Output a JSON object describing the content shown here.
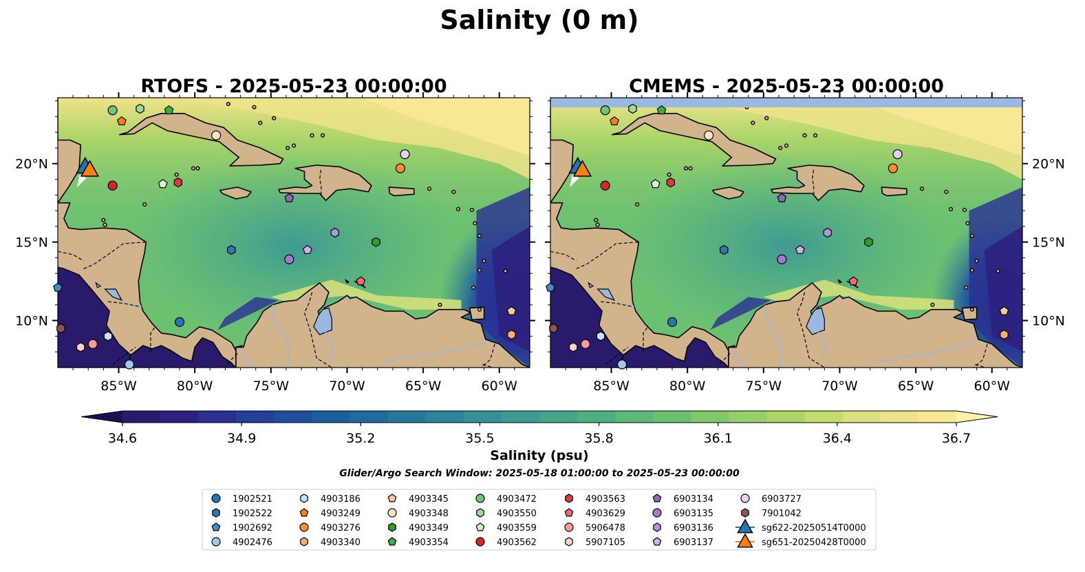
{
  "suptitle": "Salinity (0 m)",
  "panels": [
    {
      "title": "RTOFS - 2025-05-23 00:00:00"
    },
    {
      "title": "CMEMS - 2025-05-23 00:00:00"
    }
  ],
  "axes": {
    "lon_ticks": [
      "85°W",
      "80°W",
      "75°W",
      "70°W",
      "65°W",
      "60°W"
    ],
    "lat_ticks": [
      "20°N",
      "15°N",
      "10°N"
    ]
  },
  "colorbar": {
    "ticks": [
      "34.6",
      "34.9",
      "35.2",
      "35.5",
      "35.8",
      "36.1",
      "36.4",
      "36.7"
    ],
    "label": "Salinity (psu)",
    "colors": [
      "#2a1a6b",
      "#2c2180",
      "#2b2f92",
      "#24409b",
      "#1d4f9d",
      "#1a5e9c",
      "#1e6b9b",
      "#27779a",
      "#2f8399",
      "#378f97",
      "#3f9a93",
      "#46a58b",
      "#4faf83",
      "#5bb97a",
      "#6cc171",
      "#80c86a",
      "#95cf67",
      "#acd568",
      "#c2dc6d",
      "#d9e27a",
      "#eee38a",
      "#f6e895"
    ],
    "extend": "both"
  },
  "search_window": "Glider/Argo Search Window: 2025-05-18 01:00:00 to 2025-05-23 00:00:00",
  "legend": {
    "entries": [
      {
        "label": "1902521",
        "marker": "circle",
        "color": "#1f77b4"
      },
      {
        "label": "1902522",
        "marker": "hexagon",
        "color": "#2a78b4"
      },
      {
        "label": "1902692",
        "marker": "pentagon",
        "color": "#3f8fc4"
      },
      {
        "label": "4902476",
        "marker": "circle",
        "color": "#9ecae9"
      },
      {
        "label": "4903186",
        "marker": "hexagon",
        "color": "#c6e2f5"
      },
      {
        "label": "4903249",
        "marker": "pentagon",
        "color": "#ff7f0e"
      },
      {
        "label": "4903276",
        "marker": "circle",
        "color": "#f68e2d"
      },
      {
        "label": "4903340",
        "marker": "hexagon",
        "color": "#fdae6b"
      },
      {
        "label": "4903345",
        "marker": "pentagon",
        "color": "#fdc996"
      },
      {
        "label": "4903348",
        "marker": "circle",
        "color": "#fde2c4"
      },
      {
        "label": "4903349",
        "marker": "hexagon",
        "color": "#2ca02c"
      },
      {
        "label": "4903354",
        "marker": "pentagon",
        "color": "#3caf3c"
      },
      {
        "label": "4903472",
        "marker": "circle",
        "color": "#74c476"
      },
      {
        "label": "4903550",
        "marker": "hexagon",
        "color": "#a1d99b"
      },
      {
        "label": "4903559",
        "marker": "pentagon",
        "color": "#d4f2cd"
      },
      {
        "label": "4903562",
        "marker": "circle",
        "color": "#d62728"
      },
      {
        "label": "4903563",
        "marker": "hexagon",
        "color": "#de3a3c"
      },
      {
        "label": "4903629",
        "marker": "pentagon",
        "color": "#f06873"
      },
      {
        "label": "5906478",
        "marker": "circle",
        "color": "#f79b9b"
      },
      {
        "label": "5907105",
        "marker": "hexagon",
        "color": "#fcd0cb"
      },
      {
        "label": "6903134",
        "marker": "pentagon",
        "color": "#9467bd"
      },
      {
        "label": "6903135",
        "marker": "circle",
        "color": "#a27ccb"
      },
      {
        "label": "6903136",
        "marker": "hexagon",
        "color": "#b392d6"
      },
      {
        "label": "6903137",
        "marker": "pentagon",
        "color": "#cdb2e6"
      },
      {
        "label": "6903727",
        "marker": "circle",
        "color": "#e2d1f2"
      },
      {
        "label": "7901042",
        "marker": "hexagon",
        "color": "#8c564b"
      },
      {
        "label": "sg622-20250514T0000",
        "marker": "triangle",
        "color": "#1f77b4"
      },
      {
        "label": "sg651-20250428T0000",
        "marker": "triangle",
        "color": "#ff7f0e"
      }
    ]
  },
  "floats": [
    {
      "id": "1902521",
      "lon": -81.0,
      "lat": 9.9
    },
    {
      "id": "1902522",
      "lon": -77.6,
      "lat": 14.5
    },
    {
      "id": "1902692",
      "lon": -89.0,
      "lat": 12.1
    },
    {
      "id": "4902476",
      "lon": -84.3,
      "lat": 7.2
    },
    {
      "id": "4903186",
      "lon": -85.7,
      "lat": 9.0
    },
    {
      "id": "4903249",
      "lon": -84.8,
      "lat": 22.7
    },
    {
      "id": "4903276",
      "lon": -66.5,
      "lat": 19.7
    },
    {
      "id": "4903340",
      "lon": -59.2,
      "lat": 9.1
    },
    {
      "id": "4903345",
      "lon": -59.2,
      "lat": 10.6
    },
    {
      "id": "4903348",
      "lon": -78.6,
      "lat": 21.8
    },
    {
      "id": "4903349",
      "lon": -68.1,
      "lat": 15.0
    },
    {
      "id": "4903354",
      "lon": -81.7,
      "lat": 23.4
    },
    {
      "id": "4903472",
      "lon": -85.4,
      "lat": 23.4
    },
    {
      "id": "4903550",
      "lon": -83.6,
      "lat": 23.5
    },
    {
      "id": "4903559",
      "lon": -82.1,
      "lat": 18.7
    },
    {
      "id": "4903562",
      "lon": -85.4,
      "lat": 18.6
    },
    {
      "id": "4903563",
      "lon": -81.1,
      "lat": 18.8
    },
    {
      "id": "4903629",
      "lon": -69.1,
      "lat": 12.5
    },
    {
      "id": "5906478",
      "lon": -86.7,
      "lat": 8.5
    },
    {
      "id": "5907105",
      "lon": -87.5,
      "lat": 8.3
    },
    {
      "id": "6903134",
      "lon": -73.8,
      "lat": 17.8
    },
    {
      "id": "6903135",
      "lon": -73.8,
      "lat": 13.9
    },
    {
      "id": "6903136",
      "lon": -70.8,
      "lat": 15.6
    },
    {
      "id": "6903137",
      "lon": -72.6,
      "lat": 14.5
    },
    {
      "id": "6903727",
      "lon": -66.2,
      "lat": 20.6
    },
    {
      "id": "7901042",
      "lon": -88.8,
      "lat": 9.5
    }
  ],
  "gliders": [
    {
      "id": "sg622-20250514T0000",
      "lon": -87.2,
      "lat": 19.8
    },
    {
      "id": "sg651-20250428T0000",
      "lon": -86.9,
      "lat": 19.6
    }
  ],
  "map_colors": {
    "land": "#d2b48c",
    "lake": "#9ab8e0",
    "deep": "#2a1a6b",
    "fresh_band": "#9ab8e0"
  }
}
